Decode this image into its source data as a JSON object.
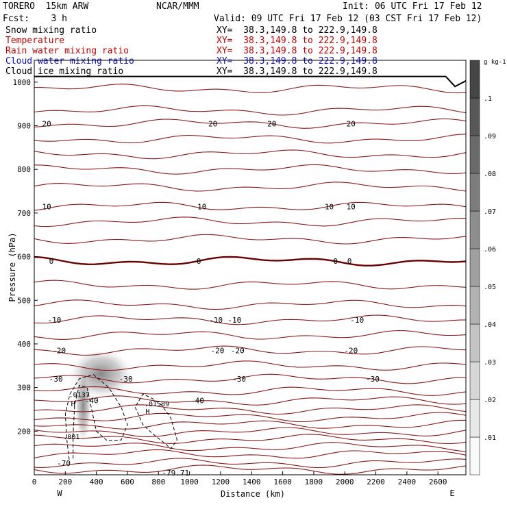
{
  "header": {
    "model": "TORERO  15km ARW",
    "org": "NCAR/MMM",
    "init": "Init: 06 UTC Fri 17 Feb 12",
    "fcst": "Fcst:    3 h",
    "valid": "Valid: 09 UTC Fri 17 Feb 12 (03 CST Fri 17 Feb 12)"
  },
  "fields": [
    {
      "name": "Snow mixing ratio",
      "xy": "XY=  38.3,149.8 to 222.9,149.8",
      "color": "#000000"
    },
    {
      "name": "Temperature",
      "xy": "XY=  38.3,149.8 to 222.9,149.8",
      "color": "#c00000"
    },
    {
      "name": "Rain water mixing ratio",
      "xy": "XY=  38.3,149.8 to 222.9,149.8",
      "color": "#c00000"
    },
    {
      "name": "Cloud water mixing ratio",
      "xy": "XY=  38.3,149.8 to 222.9,149.8",
      "color": "#1010c0"
    },
    {
      "name": "Cloud ice mixing ratio",
      "xy": "XY=  38.3,149.8 to 222.9,149.8",
      "color": "#000000"
    }
  ],
  "chart_data": {
    "type": "cross-section",
    "xlabel": "Distance (km)",
    "ylabel": "Pressure (hPa)",
    "xlim": [
      0,
      2780
    ],
    "ylim": [
      1050,
      100
    ],
    "x_ticks": [
      0,
      200,
      400,
      600,
      800,
      1000,
      1200,
      1400,
      1600,
      1800,
      2000,
      2200,
      2400,
      2600
    ],
    "y_ticks": [
      200,
      300,
      400,
      500,
      600,
      700,
      800,
      900,
      1000
    ],
    "x_end_labels": {
      "left": "W",
      "right": "E"
    },
    "colorbar": {
      "unit": "g kg-1",
      "tick_labels": [
        ".01",
        ".02",
        ".03",
        ".04",
        ".05",
        ".06",
        ".07",
        ".08",
        ".09",
        ".1"
      ]
    },
    "temperature_contours": [
      {
        "label": "-79.71",
        "p": 105,
        "label_x": 910
      },
      {
        "label": "-70",
        "p": 127,
        "label_x": 190
      },
      {
        "label": "-40",
        "p": 270,
        "label_x": 370
      },
      {
        "label": "-40",
        "p": 270,
        "label_x": 1050
      },
      {
        "label": "-30",
        "p": 320,
        "label_x": 140
      },
      {
        "label": "-30",
        "p": 320,
        "label_x": 590
      },
      {
        "label": "-30",
        "p": 320,
        "label_x": 1320
      },
      {
        "label": "-30",
        "p": 320,
        "label_x": 2180
      },
      {
        "label": "-20",
        "p": 385,
        "label_x": 160
      },
      {
        "label": "-20",
        "p": 385,
        "label_x": 1180
      },
      {
        "label": "-20",
        "p": 385,
        "label_x": 1310
      },
      {
        "label": "-20",
        "p": 385,
        "label_x": 2040
      },
      {
        "label": "-10",
        "p": 455,
        "label_x": 130
      },
      {
        "label": "-10",
        "p": 455,
        "label_x": 1170
      },
      {
        "label": "-10",
        "p": 455,
        "label_x": 1290
      },
      {
        "label": "-10",
        "p": 455,
        "label_x": 2080
      },
      {
        "label": "0",
        "p": 590,
        "label_x": 110
      },
      {
        "label": "0",
        "p": 590,
        "label_x": 1060
      },
      {
        "label": "0",
        "p": 590,
        "label_x": 1940
      },
      {
        "label": "0",
        "p": 590,
        "label_x": 2030
      },
      {
        "label": "10",
        "p": 715,
        "label_x": 80
      },
      {
        "label": "10",
        "p": 715,
        "label_x": 1080
      },
      {
        "label": "10",
        "p": 715,
        "label_x": 1900
      },
      {
        "label": "10",
        "p": 715,
        "label_x": 2040
      },
      {
        "label": "20",
        "p": 905,
        "label_x": 80
      },
      {
        "label": "20",
        "p": 905,
        "label_x": 1150
      },
      {
        "label": "20",
        "p": 905,
        "label_x": 1530
      },
      {
        "label": "20",
        "p": 905,
        "label_x": 2040
      }
    ],
    "ice_contour_labels": [
      {
        "label": ".001",
        "x": 240,
        "p": 182
      },
      {
        "label": "H",
        "x": 250,
        "p": 257
      },
      {
        "label": ".0137",
        "x": 290,
        "p": 278
      },
      {
        "label": "H",
        "x": 730,
        "p": 240
      },
      {
        "label": ".01589",
        "x": 790,
        "p": 257
      }
    ],
    "snow_max": {
      "x": 430,
      "p": 310,
      "value": 0.07
    }
  }
}
